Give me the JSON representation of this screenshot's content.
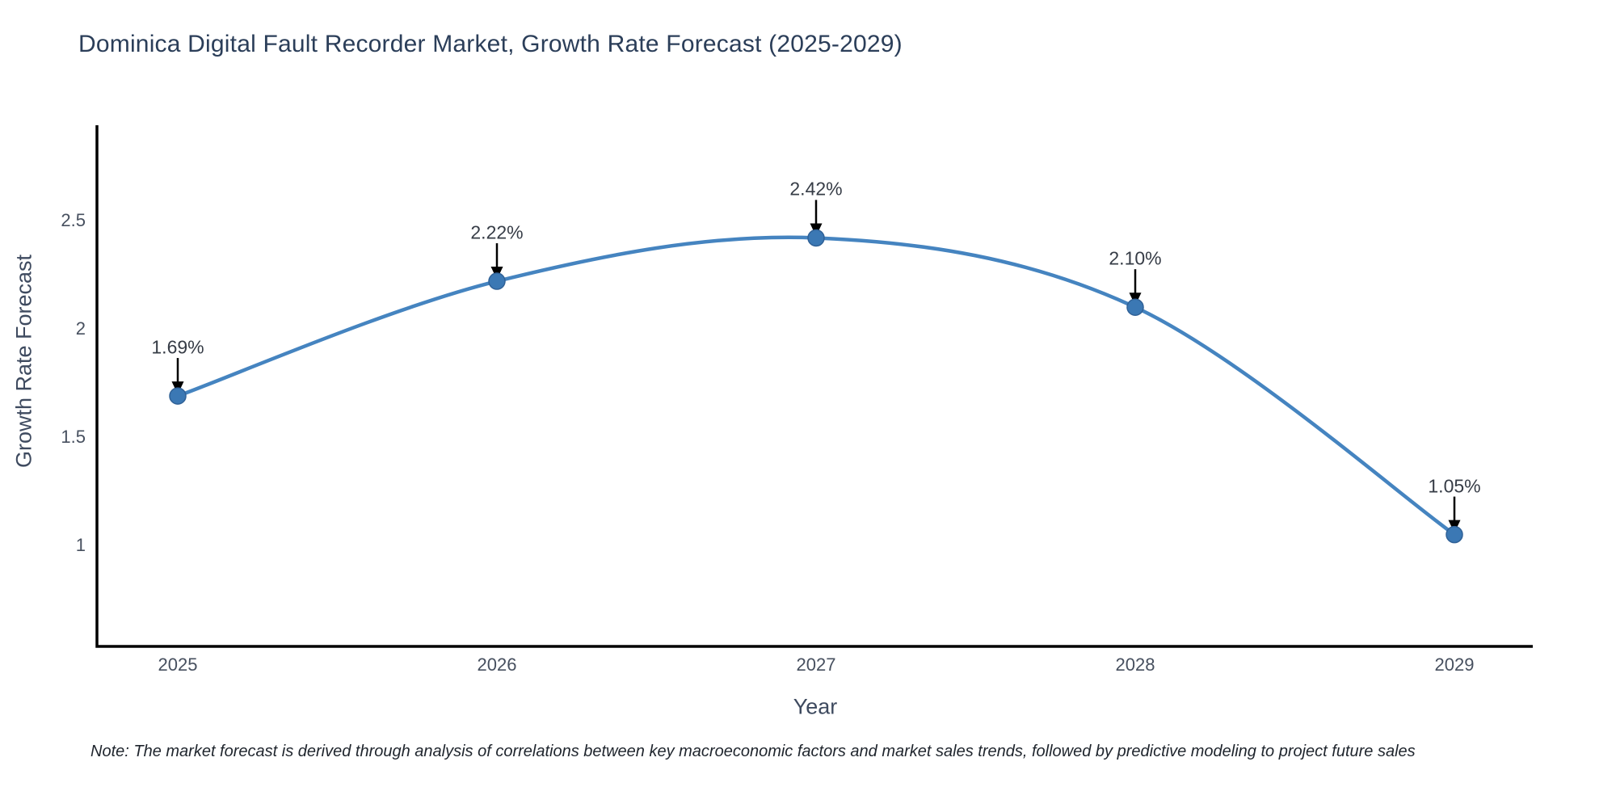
{
  "title": "Dominica Digital Fault Recorder Market, Growth Rate Forecast (2025-2029)",
  "note": {
    "text": "Note: The market forecast is derived through analysis of correlations between key macroeconomic factors and market sales trends, followed by predictive modeling to project future sales"
  },
  "chart_data": {
    "type": "line",
    "title": "Dominica Digital Fault Recorder Market, Growth Rate Forecast (2025-2029)",
    "xlabel": "Year",
    "ylabel": "Growth Rate Forecast",
    "line_shape": "spline",
    "grid": false,
    "legend": false,
    "categories": [
      "2025",
      "2026",
      "2027",
      "2028",
      "2029"
    ],
    "values": [
      1.69,
      2.22,
      2.42,
      2.1,
      1.05
    ],
    "point_labels": [
      "1.69%",
      "2.22%",
      "2.42%",
      "2.10%",
      "1.05%"
    ],
    "ytick_values": [
      1,
      1.5,
      2,
      2.5
    ],
    "ytick_labels": [
      "1",
      "1.5",
      "2",
      "2.5"
    ],
    "ylim": [
      0.53,
      2.94
    ],
    "colors": {
      "line": "#4584c0",
      "marker": "#3b78b4",
      "marker_edge": "#306197",
      "axis": "#000000",
      "arrow": "#000000",
      "title_text": "#2b3e59",
      "tick_text": "#47505f",
      "annotation_text": "#363c46"
    }
  }
}
